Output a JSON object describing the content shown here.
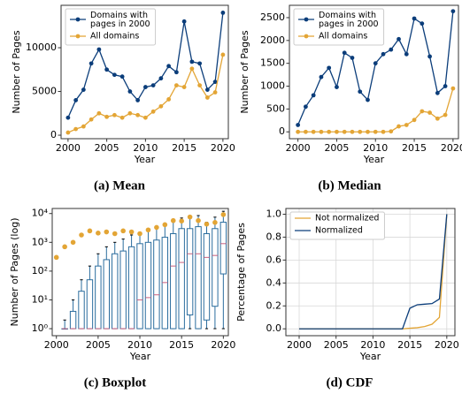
{
  "chart_data": [
    {
      "type": "line",
      "caption": "(a) Mean",
      "xlabel": "Year",
      "ylabel": "Number of Pages",
      "x": [
        2000,
        2001,
        2002,
        2003,
        2004,
        2005,
        2006,
        2007,
        2008,
        2009,
        2010,
        2011,
        2012,
        2013,
        2014,
        2015,
        2016,
        2017,
        2018,
        2019,
        2020
      ],
      "xlim": [
        1999.1,
        2020.7
      ],
      "xticks": [
        2000,
        2005,
        2010,
        2015,
        2020
      ],
      "ylim": [
        -400,
        14850
      ],
      "yticks": [
        0,
        5000,
        10000
      ],
      "markers": true,
      "grid": false,
      "legend": "upper left",
      "series": [
        {
          "name": "Domains with pages in 2000",
          "color": "#0b3d7a",
          "values": [
            2000,
            4000,
            5200,
            8200,
            9800,
            7500,
            6900,
            6700,
            5000,
            4000,
            5500,
            5700,
            6500,
            7900,
            7200,
            13000,
            8400,
            8200,
            5200,
            6100,
            14000
          ]
        },
        {
          "name": "All domains",
          "color": "#e3a535",
          "values": [
            300,
            700,
            1000,
            1800,
            2500,
            2100,
            2300,
            2000,
            2500,
            2300,
            2000,
            2700,
            3300,
            4100,
            5700,
            5500,
            7600,
            5700,
            4300,
            4900,
            9200
          ]
        }
      ]
    },
    {
      "type": "line",
      "caption": "(b) Median",
      "xlabel": "Year",
      "ylabel": "Number of Pages",
      "x": [
        2000,
        2001,
        2002,
        2003,
        2004,
        2005,
        2006,
        2007,
        2008,
        2009,
        2010,
        2011,
        2012,
        2013,
        2014,
        2015,
        2016,
        2017,
        2018,
        2019,
        2020
      ],
      "xlim": [
        1998.9,
        2020.7
      ],
      "xticks": [
        2000,
        2005,
        2010,
        2015,
        2020
      ],
      "ylim": [
        -150,
        2770
      ],
      "yticks": [
        0,
        500,
        1000,
        1500,
        2000,
        2500
      ],
      "markers": true,
      "grid": false,
      "legend": "upper left",
      "series": [
        {
          "name": "Domains with pages in 2000",
          "color": "#0b3d7a",
          "values": [
            150,
            550,
            800,
            1200,
            1400,
            980,
            1730,
            1620,
            880,
            700,
            1500,
            1700,
            1800,
            2030,
            1700,
            2480,
            2370,
            1650,
            850,
            1000,
            2640
          ]
        },
        {
          "name": "All domains",
          "color": "#e3a535",
          "values": [
            0,
            0,
            0,
            0,
            0,
            0,
            0,
            0,
            0,
            0,
            0,
            0,
            10,
            120,
            150,
            260,
            450,
            420,
            290,
            370,
            950
          ]
        }
      ]
    },
    {
      "type": "boxplot",
      "caption": "(c) Boxplot",
      "xlabel": "Year",
      "ylabel": "Number of Pages (log)",
      "x": [
        2001,
        2002,
        2003,
        2004,
        2005,
        2006,
        2007,
        2008,
        2009,
        2010,
        2011,
        2012,
        2013,
        2014,
        2015,
        2016,
        2017,
        2018,
        2019,
        2020
      ],
      "xlim": [
        1999.5,
        2020.6
      ],
      "xticks": [
        2000,
        2005,
        2010,
        2015,
        2020
      ],
      "log": true,
      "ylim": [
        0.57,
        15000
      ],
      "yticks": [
        {
          "value": 1,
          "label": "10⁰"
        },
        {
          "value": 10,
          "label": "10¹"
        },
        {
          "value": 100,
          "label": "10²"
        },
        {
          "value": 1000,
          "label": "10³"
        },
        {
          "value": 10000,
          "label": "10⁴"
        }
      ],
      "box_color": "#2b6d9e",
      "median_color": "#c8607e",
      "whisker_low": [
        1,
        1,
        1,
        1,
        1,
        1,
        1,
        1,
        1,
        1,
        1,
        1,
        1,
        1,
        1,
        1,
        1,
        1,
        1,
        1
      ],
      "q1": [
        1,
        1,
        1,
        1,
        1,
        1,
        1,
        1,
        1,
        1,
        1,
        1,
        1,
        1,
        1,
        3,
        1,
        2,
        6,
        80
      ],
      "median": [
        1,
        1,
        1,
        1,
        1,
        1,
        1,
        1,
        1,
        10,
        12,
        15,
        40,
        150,
        200,
        400,
        400,
        300,
        350,
        900
      ],
      "q3": [
        1,
        4,
        20,
        50,
        150,
        250,
        400,
        500,
        700,
        900,
        1000,
        1200,
        1500,
        2000,
        3000,
        3000,
        3500,
        2000,
        3000,
        5000
      ],
      "whisker_high": [
        2,
        10,
        50,
        150,
        400,
        700,
        1000,
        1300,
        1800,
        2200,
        2500,
        3000,
        3800,
        5000,
        7000,
        7500,
        8500,
        5000,
        7500,
        12000
      ],
      "means": {
        "color": "#e3a535",
        "x": [
          2000,
          2001,
          2002,
          2003,
          2004,
          2005,
          2006,
          2007,
          2008,
          2009,
          2010,
          2011,
          2012,
          2013,
          2014,
          2015,
          2016,
          2017,
          2018,
          2019,
          2020
        ],
        "values": [
          300,
          700,
          1000,
          1800,
          2500,
          2100,
          2300,
          2000,
          2500,
          2300,
          2000,
          2700,
          3300,
          4100,
          5700,
          5500,
          7600,
          5700,
          4300,
          4900,
          9200
        ]
      }
    },
    {
      "type": "line",
      "caption": "(d) CDF",
      "xlabel": "Year",
      "ylabel": "Percentage of Pages",
      "x": [
        2000,
        2001,
        2002,
        2003,
        2004,
        2005,
        2006,
        2007,
        2008,
        2009,
        2010,
        2011,
        2012,
        2013,
        2014,
        2015,
        2016,
        2017,
        2018,
        2019,
        2020
      ],
      "xlim": [
        1998.2,
        2021.1
      ],
      "xticks": [
        2000,
        2005,
        2010,
        2015,
        2020
      ],
      "ylim": [
        -0.06,
        1.05
      ],
      "yticks": [
        {
          "value": 0,
          "label": "0.0"
        },
        0.2,
        0.4,
        0.6,
        0.8,
        {
          "value": 1,
          "label": "1.0"
        }
      ],
      "markers": false,
      "grid": true,
      "legend": "upper left",
      "series": [
        {
          "name": "Not normalized",
          "color": "#e3a535",
          "values": [
            0,
            0,
            0,
            0,
            0,
            0,
            0,
            0,
            0,
            0,
            0,
            0,
            0,
            0,
            0,
            0.005,
            0.01,
            0.02,
            0.04,
            0.1,
            1
          ]
        },
        {
          "name": "Normalized",
          "color": "#0b3d7a",
          "values": [
            0,
            0,
            0,
            0,
            0,
            0,
            0,
            0,
            0,
            0,
            0,
            0,
            0,
            0,
            0,
            0.18,
            0.21,
            0.215,
            0.22,
            0.26,
            1
          ]
        }
      ]
    }
  ]
}
